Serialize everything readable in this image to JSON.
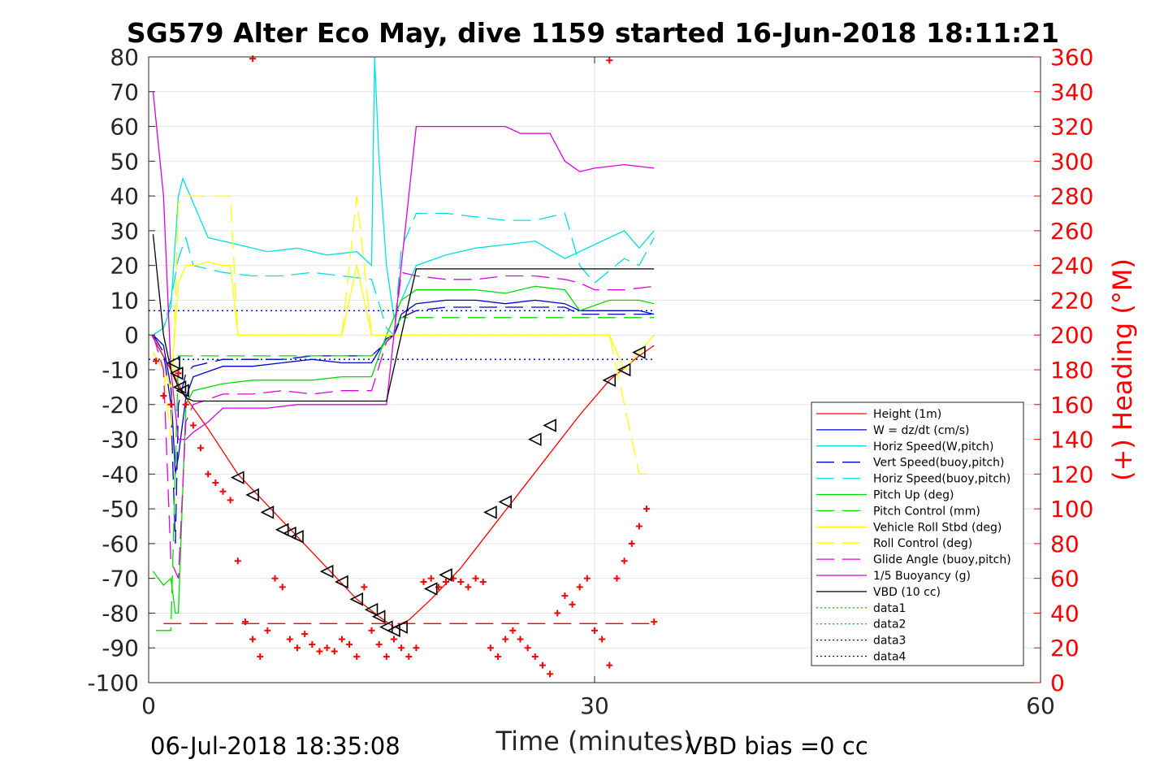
{
  "chart_data": {
    "type": "line",
    "title": "SG579 Alter Eco May, dive 1159 started 16-Jun-2018 18:11:21",
    "xlabel": "Time (minutes)",
    "ylabel_right": "(+) Heading (°M)",
    "xlim": [
      0,
      60
    ],
    "ylim": [
      -100,
      80
    ],
    "ylim_right": [
      0,
      360
    ],
    "xticks": [
      "0",
      "30",
      "60"
    ],
    "yticks": [
      "80",
      "70",
      "60",
      "50",
      "40",
      "30",
      "20",
      "10",
      "0",
      "-10",
      "-20",
      "-30",
      "-40",
      "-50",
      "-60",
      "-70",
      "-80",
      "-90",
      "-100"
    ],
    "yticks_right": [
      "360",
      "340",
      "320",
      "300",
      "280",
      "260",
      "240",
      "220",
      "200",
      "180",
      "160",
      "140",
      "120",
      "100",
      "80",
      "60",
      "40",
      "20",
      "0"
    ],
    "grid_x": [
      30
    ],
    "footer_left": "06-Jul-2018 18:35:08",
    "footer_right": "VBD bias =0 cc",
    "legend_position": "bottom-right",
    "legend": [
      {
        "name": "Height (1m)",
        "color": "#ff0000",
        "dash": "solid"
      },
      {
        "name": "W = dz/dt (cm/s)",
        "color": "#0000cc",
        "dash": "solid"
      },
      {
        "name": "Horiz Speed(W,pitch)",
        "color": "#00e0e0",
        "dash": "solid"
      },
      {
        "name": "Vert Speed(buoy,pitch)",
        "color": "#0000cc",
        "dash": "dashed"
      },
      {
        "name": "Horiz Speed(buoy,pitch)",
        "color": "#00e0e0",
        "dash": "dashed"
      },
      {
        "name": "Pitch Up (deg)",
        "color": "#00dd00",
        "dash": "solid"
      },
      {
        "name": "Pitch Control (mm)",
        "color": "#00dd00",
        "dash": "dashed"
      },
      {
        "name": "Vehicle Roll Stbd (deg)",
        "color": "#ffff00",
        "dash": "solid"
      },
      {
        "name": "Roll Control (deg)",
        "color": "#ffff00",
        "dash": "dashed"
      },
      {
        "name": "Glide Angle (buoy,pitch)",
        "color": "#dd00dd",
        "dash": "dashed"
      },
      {
        "name": "1/5 Buoyancy (g)",
        "color": "#dd00dd",
        "dash": "solid"
      },
      {
        "name": "VBD (10 cc)",
        "color": "#000000",
        "dash": "solid"
      },
      {
        "name": "data1",
        "color": "#00dd00",
        "dash": "dotted"
      },
      {
        "name": "data2",
        "color": "#00dd00",
        "dash": "dotted"
      },
      {
        "name": "data3",
        "color": "#0000cc",
        "dash": "dotted"
      },
      {
        "name": "data4",
        "color": "#0000cc",
        "dash": "dotted"
      }
    ],
    "series": [
      {
        "name": "Height (1m)",
        "color": "#ff0000",
        "dash": "solid",
        "x": [
          0.2,
          1.5,
          2.5,
          4,
          6,
          8,
          10,
          12,
          14,
          15.5,
          16.5,
          17.5,
          19,
          21,
          23,
          25,
          27,
          29,
          31,
          33,
          34
        ],
        "y": [
          0,
          -10,
          -18,
          -27,
          -40,
          -49,
          -58,
          -67,
          -76,
          -81,
          -84,
          -82,
          -76,
          -67,
          -56,
          -45,
          -34,
          -23,
          -13,
          -6,
          -3
        ]
      },
      {
        "name": "W = dz/dt (cm/s)",
        "color": "#0000cc",
        "dash": "solid",
        "x": [
          0.3,
          1,
          1.5,
          1.8,
          2,
          2.5,
          3,
          5,
          7,
          9,
          11,
          13,
          15,
          16,
          16.5,
          17,
          18,
          20,
          22,
          24,
          26,
          28,
          29,
          31,
          33,
          34
        ],
        "y": [
          0,
          -3,
          -15,
          -40,
          -35,
          -18,
          -12,
          -9,
          -9,
          -8,
          -7,
          -8,
          -8,
          -1,
          0,
          6,
          9,
          10,
          10,
          9,
          10,
          9,
          7,
          7,
          7,
          6
        ]
      },
      {
        "name": "Horiz Speed(W,pitch)",
        "color": "#00e0e0",
        "dash": "solid",
        "x": [
          0.3,
          1,
          1.5,
          2,
          2.3,
          3,
          4,
          6,
          8,
          10,
          12,
          14,
          15,
          15.2,
          15.5,
          16,
          16.5,
          17,
          18,
          20,
          22,
          24,
          26,
          28,
          30,
          32,
          33,
          34
        ],
        "y": [
          0,
          2,
          8,
          40,
          45,
          38,
          28,
          26,
          24,
          25,
          23,
          24,
          20,
          80,
          50,
          20,
          5,
          10,
          20,
          23,
          25,
          26,
          27,
          22,
          26,
          30,
          25,
          30
        ]
      },
      {
        "name": "Vert Speed(buoy,pitch)",
        "color": "#0000cc",
        "dash": "dashed",
        "x": [
          0.3,
          1,
          1.5,
          1.8,
          2,
          2.5,
          3,
          5,
          7,
          9,
          11,
          13,
          15,
          16,
          16.5,
          17,
          18,
          20,
          22,
          24,
          26,
          28,
          29,
          31,
          33,
          34
        ],
        "y": [
          0,
          -5,
          -20,
          -60,
          -20,
          -11,
          -9,
          -7,
          -7,
          -7,
          -6,
          -6,
          -6,
          -2,
          0,
          5,
          7,
          8,
          8,
          8,
          8,
          8,
          6,
          6,
          6,
          6
        ]
      },
      {
        "name": "Horiz Speed(buoy,pitch)",
        "color": "#00e0e0",
        "dash": "dashed",
        "x": [
          0.3,
          1,
          1.5,
          2,
          2.5,
          3,
          5,
          7,
          9,
          11,
          13,
          15,
          16,
          16.5,
          17,
          18,
          20,
          22,
          24,
          26,
          28,
          29,
          30,
          32,
          33,
          34
        ],
        "y": [
          0,
          2,
          10,
          22,
          28,
          20,
          18,
          17,
          17,
          18,
          17,
          16,
          2,
          0,
          25,
          35,
          35,
          34,
          33,
          33,
          35,
          20,
          15,
          22,
          20,
          28
        ]
      },
      {
        "name": "Pitch Up (deg)",
        "color": "#00dd00",
        "dash": "solid",
        "x": [
          0.3,
          1,
          1.5,
          1.8,
          2,
          2.5,
          3,
          5,
          7,
          9,
          11,
          13,
          15,
          16,
          16.5,
          17,
          18,
          20,
          22,
          24,
          26,
          28,
          29,
          31,
          33,
          34
        ],
        "y": [
          -68,
          -72,
          -70,
          -80,
          -80,
          -20,
          -16,
          -14,
          -13,
          -13,
          -13,
          -12,
          -12,
          0,
          5,
          10,
          13,
          13,
          13,
          12,
          14,
          13,
          7,
          10,
          10,
          9
        ]
      },
      {
        "name": "Pitch Control (mm)",
        "color": "#00dd00",
        "dash": "dashed",
        "x": [
          0.5,
          1,
          1.5,
          2,
          3,
          5,
          8,
          12,
          15,
          16,
          17,
          18,
          22,
          26,
          30,
          34
        ],
        "y": [
          -85,
          -85,
          -85,
          -6,
          -6,
          -6,
          -6,
          -6,
          -6,
          -2,
          5,
          5,
          5,
          5,
          5,
          5
        ]
      },
      {
        "name": "Vehicle Roll Stbd (deg)",
        "color": "#ffff00",
        "dash": "solid",
        "x": [
          0.3,
          1,
          1.5,
          2,
          2.5,
          3,
          4,
          5,
          5.5,
          6,
          7,
          8,
          9,
          10,
          11,
          12,
          13,
          14,
          15,
          16,
          17,
          18,
          19,
          20,
          21,
          22,
          23,
          24,
          25,
          26,
          27,
          28,
          29,
          30,
          31,
          32,
          33,
          34
        ],
        "y": [
          -5,
          -10,
          -15,
          15,
          20,
          20,
          21,
          20,
          20,
          0,
          0,
          0,
          0,
          0,
          0,
          0,
          0,
          20,
          0,
          0,
          0,
          0,
          0,
          0,
          0,
          0,
          0,
          0,
          0,
          0,
          0,
          0,
          0,
          0,
          0,
          -10,
          -5,
          0
        ]
      },
      {
        "name": "Roll Control (deg)",
        "color": "#ffff00",
        "dash": "dashed",
        "x": [
          0.3,
          1,
          1.5,
          2,
          2.5,
          3,
          4,
          5,
          5.5,
          6,
          7,
          8,
          9,
          10,
          11,
          12,
          13,
          14,
          15,
          16,
          17,
          18,
          19,
          20,
          21,
          22,
          23,
          24,
          25,
          26,
          27,
          28,
          29,
          30,
          31,
          32,
          33,
          34
        ],
        "y": [
          -5,
          -10,
          -30,
          38,
          40,
          40,
          40,
          40,
          40,
          0,
          0,
          0,
          0,
          0,
          0,
          0,
          0,
          40,
          0,
          0,
          0,
          0,
          0,
          0,
          0,
          0,
          0,
          0,
          0,
          0,
          0,
          0,
          0,
          0,
          0,
          -20,
          -40,
          -40
        ]
      },
      {
        "name": "Glide Angle (buoy,pitch)",
        "color": "#dd00dd",
        "dash": "dashed",
        "x": [
          0.3,
          1,
          1.5,
          2,
          2.5,
          3,
          5,
          7,
          9,
          11,
          13,
          15,
          16,
          16.5,
          17,
          18,
          20,
          22,
          24,
          26,
          28,
          29,
          30,
          32,
          34
        ],
        "y": [
          0,
          -10,
          -65,
          -70,
          -25,
          -20,
          -17,
          -17,
          -16,
          -17,
          -16,
          -16,
          -2,
          0,
          18,
          17,
          16,
          16,
          17,
          17,
          16,
          15,
          13,
          13,
          14
        ]
      },
      {
        "name": "1/5 Buoyancy (g)",
        "color": "#dd00dd",
        "dash": "solid",
        "x": [
          0.3,
          1,
          1.5,
          2,
          2.5,
          3,
          4,
          5,
          6,
          8,
          10,
          12,
          14,
          15,
          16,
          17,
          18,
          20,
          22,
          24,
          25,
          26,
          27,
          28,
          29,
          30,
          32,
          34
        ],
        "y": [
          70,
          40,
          -10,
          -30,
          -30,
          -28,
          -25,
          -21,
          -21,
          -21,
          -20,
          -20,
          -20,
          -20,
          -20,
          20,
          60,
          60,
          60,
          60,
          58,
          58,
          58,
          50,
          47,
          48,
          49,
          48
        ]
      },
      {
        "name": "VBD (10 cc)",
        "color": "#000000",
        "dash": "solid",
        "x": [
          0.3,
          1,
          1.5,
          2,
          2.5,
          3,
          5,
          8,
          11,
          13,
          15,
          16,
          17,
          18,
          20,
          22,
          24,
          26,
          28,
          30,
          32,
          34
        ],
        "y": [
          29,
          0,
          -10,
          -15,
          -18,
          -19,
          -19,
          -19,
          -19,
          -19,
          -19,
          -19,
          0,
          19,
          19,
          19,
          19,
          19,
          19,
          19,
          19,
          19
        ]
      },
      {
        "name": "data1",
        "color": "#00dd00",
        "dash": "dotted",
        "x": [
          0,
          34
        ],
        "y": [
          7,
          7
        ]
      },
      {
        "name": "data2",
        "color": "#00dd00",
        "dash": "dotted",
        "x": [
          0,
          34
        ],
        "y": [
          -7,
          -7
        ]
      },
      {
        "name": "data3",
        "color": "#0000cc",
        "dash": "dotted",
        "x": [
          0,
          34
        ],
        "y": [
          7,
          7
        ]
      },
      {
        "name": "data4",
        "color": "#0000cc",
        "dash": "dotted",
        "x": [
          0,
          34
        ],
        "y": [
          -7,
          -7
        ]
      },
      {
        "name": "Heading",
        "color": "#ff0000",
        "dash": "dashed",
        "x": [
          1,
          34
        ],
        "y": [
          -83,
          -83
        ]
      }
    ],
    "heading_points": {
      "color": "#ff0000",
      "x": [
        0.5,
        1,
        1.5,
        2,
        2.5,
        3,
        3.5,
        4,
        4.5,
        5,
        5.5,
        6,
        6.5,
        7,
        7.5,
        8,
        8.5,
        9,
        9.5,
        10,
        10.5,
        11,
        11.5,
        12,
        12.5,
        13,
        13.5,
        14,
        14.5,
        15,
        15.5,
        16,
        16.5,
        17,
        17.5,
        18,
        18.5,
        19,
        19.5,
        20,
        20.5,
        21,
        21.5,
        22,
        22.5,
        23,
        23.5,
        24,
        24.5,
        25,
        25.5,
        26,
        26.5,
        27,
        27.5,
        28,
        28.5,
        29,
        29.5,
        30,
        30.5,
        31,
        31.5,
        32,
        32.5,
        33,
        33.5,
        34,
        7,
        31
      ],
      "y": [
        185,
        165,
        160,
        178,
        160,
        148,
        135,
        120,
        115,
        110,
        105,
        70,
        35,
        25,
        15,
        30,
        60,
        55,
        25,
        20,
        28,
        22,
        18,
        20,
        18,
        25,
        22,
        15,
        55,
        30,
        22,
        15,
        25,
        20,
        15,
        20,
        58,
        60,
        55,
        58,
        60,
        58,
        55,
        60,
        58,
        20,
        15,
        25,
        30,
        25,
        20,
        15,
        10,
        5,
        40,
        50,
        45,
        55,
        60,
        30,
        25,
        10,
        60,
        70,
        80,
        90,
        100,
        35,
        359,
        358
      ]
    },
    "triangles": {
      "x": [
        1.7,
        1.9,
        2.1,
        2.3,
        6,
        7,
        8,
        9,
        9.5,
        10,
        12,
        13,
        14,
        15,
        15.5,
        16,
        16.5,
        17,
        19,
        20,
        23,
        24,
        26,
        27,
        31,
        32,
        33
      ],
      "y": [
        -8,
        -11,
        -15,
        -16,
        -41,
        -46,
        -51,
        -56,
        -57,
        -58,
        -68,
        -71,
        -76,
        -79,
        -81,
        -84,
        -85,
        -84,
        -73,
        -69,
        -51,
        -48,
        -30,
        -26,
        -13,
        -10,
        -5
      ]
    }
  }
}
